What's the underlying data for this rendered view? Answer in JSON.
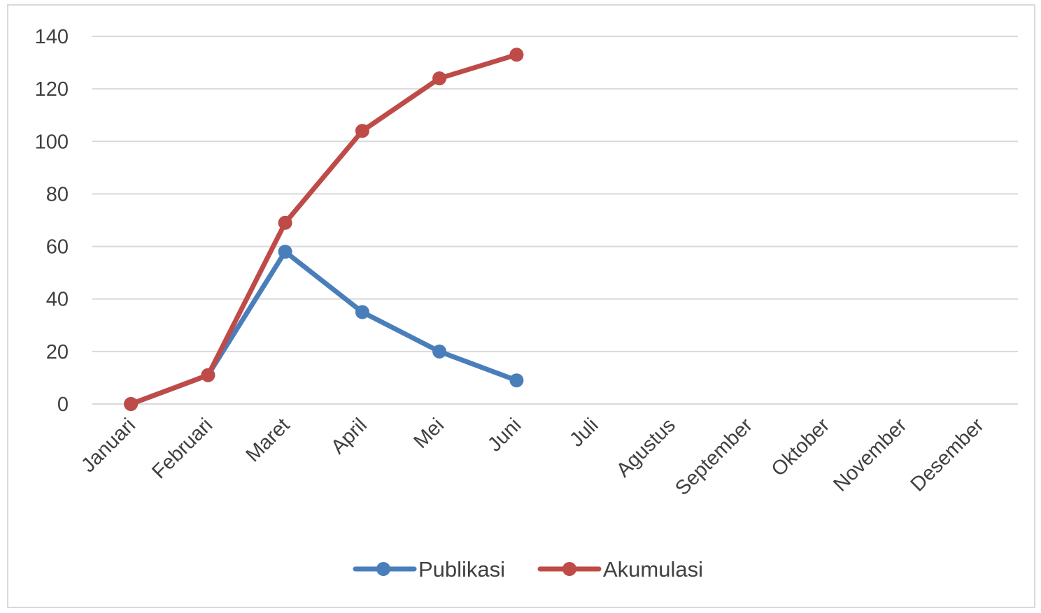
{
  "chart_data": {
    "type": "line",
    "title": "",
    "xlabel": "",
    "ylabel": "",
    "categories": [
      "Januari",
      "Februari",
      "Maret",
      "April",
      "Mei",
      "Juni",
      "Juli",
      "Agustus",
      "September",
      "Oktober",
      "November",
      "Desember"
    ],
    "series": [
      {
        "name": "Publikasi",
        "color": "#4a7ebb",
        "values": [
          0,
          11,
          58,
          35,
          20,
          9,
          null,
          null,
          null,
          null,
          null,
          null
        ]
      },
      {
        "name": "Akumulasi",
        "color": "#be4b48",
        "values": [
          0,
          11,
          69,
          104,
          124,
          133,
          null,
          null,
          null,
          null,
          null,
          null
        ]
      }
    ],
    "ylim": [
      0,
      140
    ],
    "yticks": [
      0,
      20,
      40,
      60,
      80,
      100,
      120,
      140
    ],
    "grid": true,
    "legend": "bottom"
  }
}
